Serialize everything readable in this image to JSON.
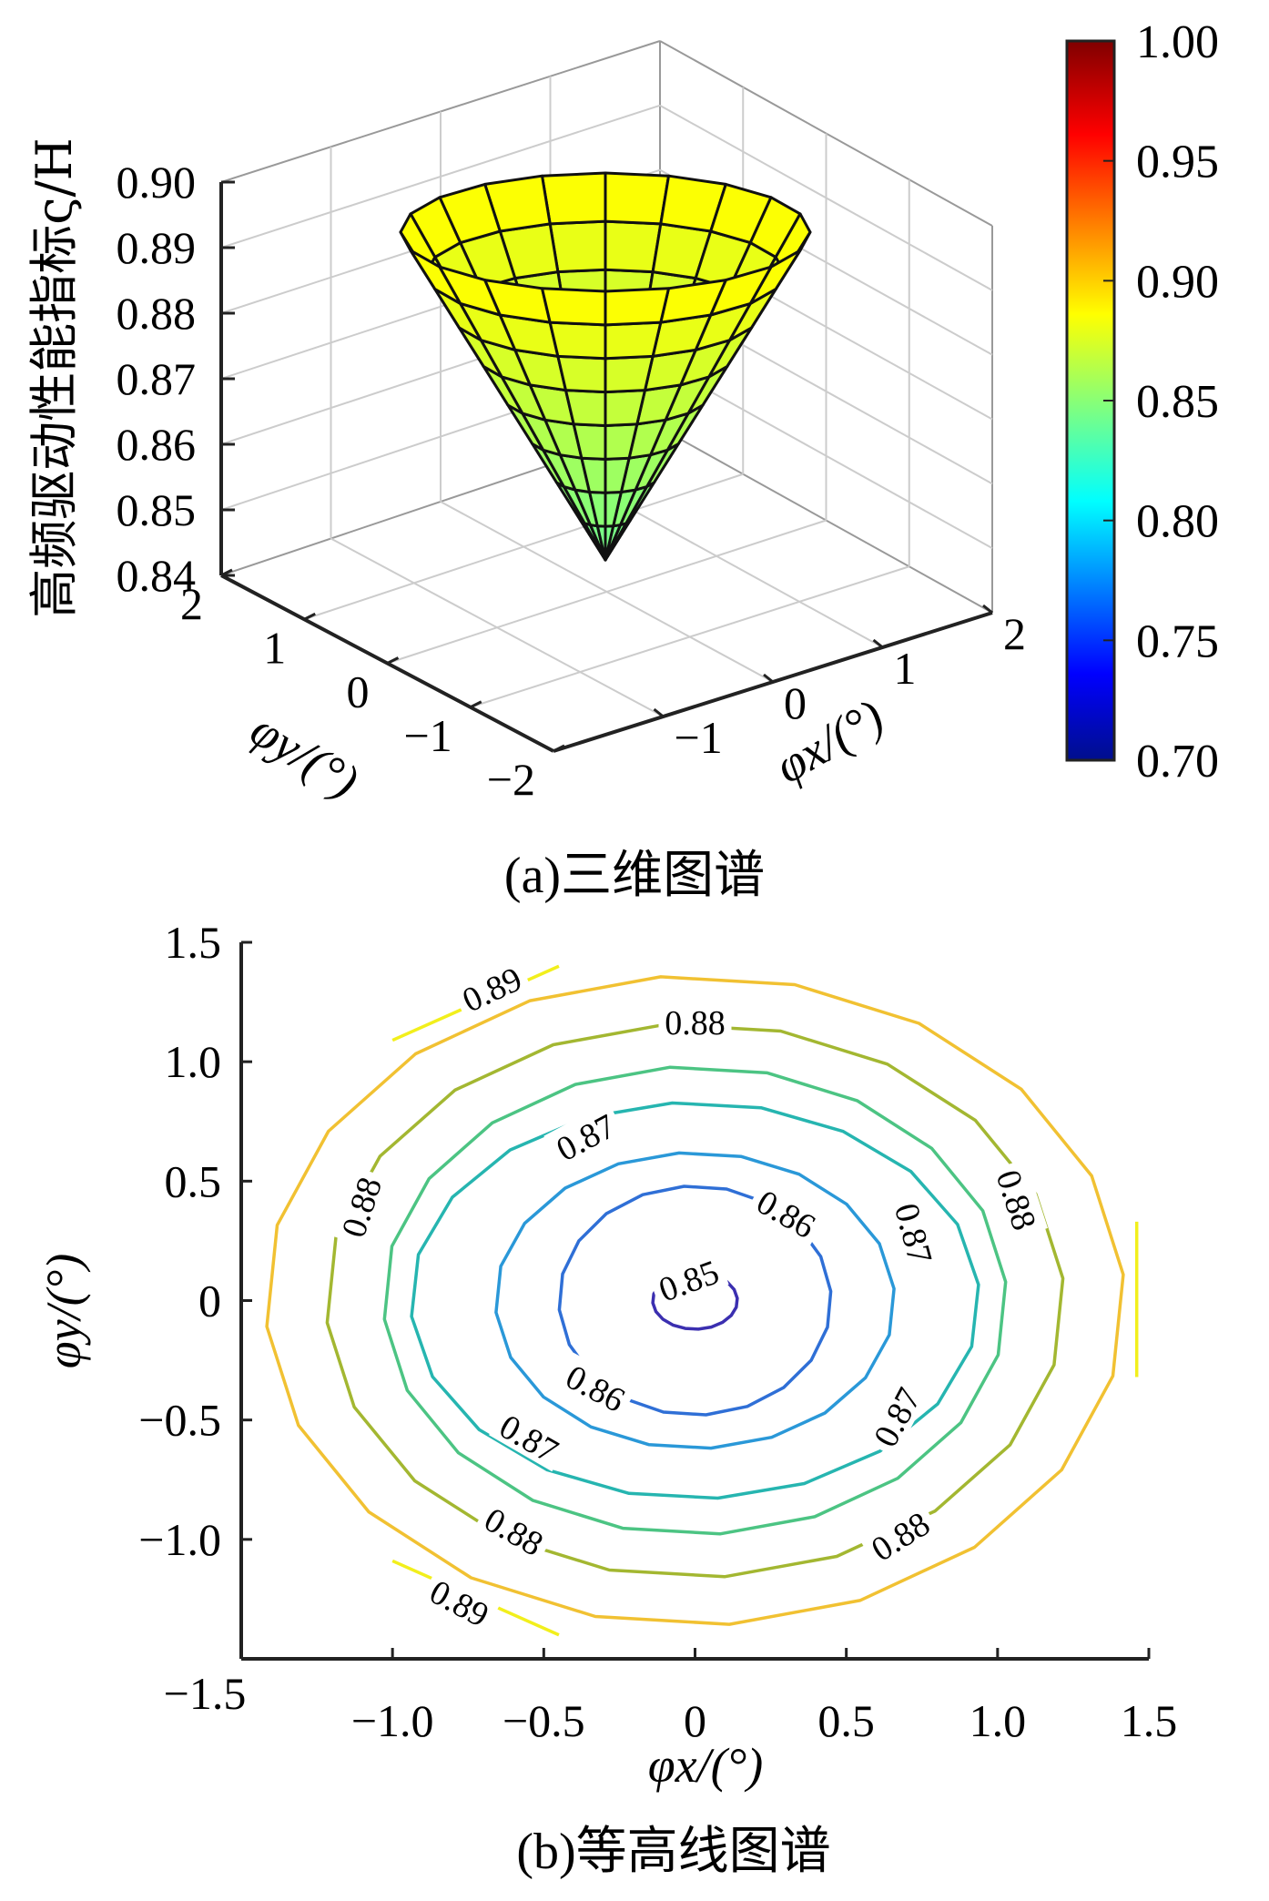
{
  "chart_data": [
    {
      "type": "surface3d",
      "caption": "(a)三维图谱",
      "zlabel": "高频驱动性能指标ς/H",
      "xlabel": "φx/(°)",
      "ylabel": "φy/(°)",
      "xticks": [
        "−1",
        "0",
        "1",
        "2"
      ],
      "yticks": [
        "2",
        "1",
        "0",
        "−1",
        "−2"
      ],
      "zticks": [
        "0.90",
        "0.89",
        "0.88",
        "0.87",
        "0.86",
        "0.85",
        "0.84"
      ],
      "zlim": [
        0.84,
        0.9
      ],
      "surface": {
        "shape": "inverted cone",
        "apex_value": 0.842,
        "rim_value": 0.888,
        "rings": 8,
        "segments": 20
      },
      "colorbar": {
        "min": 0.7,
        "max": 1.0,
        "colormap": "jet",
        "ticks": [
          "1.00",
          "0.95",
          "0.90",
          "0.85",
          "0.80",
          "0.75",
          "0.70"
        ]
      },
      "grid": true
    },
    {
      "type": "contour",
      "caption": "(b)等高线图谱",
      "xlabel": "φx/(°)",
      "ylabel": "φy/(°)",
      "xlim": [
        -1.5,
        1.5
      ],
      "ylim": [
        -1.5,
        1.5
      ],
      "xticks": [
        "−1.5",
        "−1.0",
        "−0.5",
        "0",
        "0.5",
        "1.0",
        "1.5"
      ],
      "yticks": [
        "1.5",
        "1.0",
        "0.5",
        "0",
        "−0.5",
        "−1.0"
      ],
      "levels": [
        {
          "value": 0.85,
          "label": "0.85",
          "color": "#3b2fb0",
          "rx": 0.14,
          "ry": 0.12
        },
        {
          "value": 0.86,
          "label": "0.86",
          "color": "#2f6fd6",
          "rx": 0.45,
          "ry": 0.48
        },
        {
          "value": 0.86,
          "label": "0.86",
          "color": "#2a98d8",
          "rx": 0.66,
          "ry": 0.62
        },
        {
          "value": 0.87,
          "label": "0.87",
          "color": "#26b5b0",
          "rx": 0.94,
          "ry": 0.83
        },
        {
          "value": 0.87,
          "label": "0.87",
          "color": "#4cc483",
          "rx": 1.03,
          "ry": 0.98
        },
        {
          "value": 0.88,
          "label": "0.88",
          "color": "#a3b731",
          "rx": 1.22,
          "ry": 1.16
        },
        {
          "value": 0.88,
          "label": "0.88",
          "color": "#f1c132",
          "rx": 1.42,
          "ry": 1.36
        }
      ],
      "labels": [
        {
          "text": "0.85",
          "x": -0.02,
          "y": 0.08,
          "rot": -20
        },
        {
          "text": "0.86",
          "x": 0.3,
          "y": 0.36,
          "rot": 30
        },
        {
          "text": "0.86",
          "x": -0.33,
          "y": -0.37,
          "rot": 28
        },
        {
          "text": "0.87",
          "x": -0.36,
          "y": 0.68,
          "rot": -28
        },
        {
          "text": "0.87",
          "x": 0.72,
          "y": 0.28,
          "rot": 75
        },
        {
          "text": "0.87",
          "x": -0.55,
          "y": -0.58,
          "rot": 30
        },
        {
          "text": "0.87",
          "x": 0.67,
          "y": -0.49,
          "rot": -62
        },
        {
          "text": "0.88",
          "x": 0.0,
          "y": 1.16,
          "rot": 0
        },
        {
          "text": "0.88",
          "x": -1.1,
          "y": 0.39,
          "rot": -72
        },
        {
          "text": "0.88",
          "x": 1.06,
          "y": 0.42,
          "rot": 72
        },
        {
          "text": "0.88",
          "x": -0.6,
          "y": -0.97,
          "rot": 30
        },
        {
          "text": "0.88",
          "x": 0.68,
          "y": -0.99,
          "rot": -32
        },
        {
          "text": "0.89",
          "x": -0.67,
          "y": 1.3,
          "rot": -25
        },
        {
          "text": "0.89",
          "x": -0.78,
          "y": -1.27,
          "rot": 28
        }
      ],
      "outer_arcs": [
        {
          "value": 0.89,
          "color": "#f2ef1c",
          "corner": "top-left"
        },
        {
          "value": 0.89,
          "color": "#f2ef1c",
          "corner": "bottom-left"
        },
        {
          "value": 0.89,
          "color": "#f2ef1c",
          "corner": "right"
        }
      ]
    }
  ]
}
